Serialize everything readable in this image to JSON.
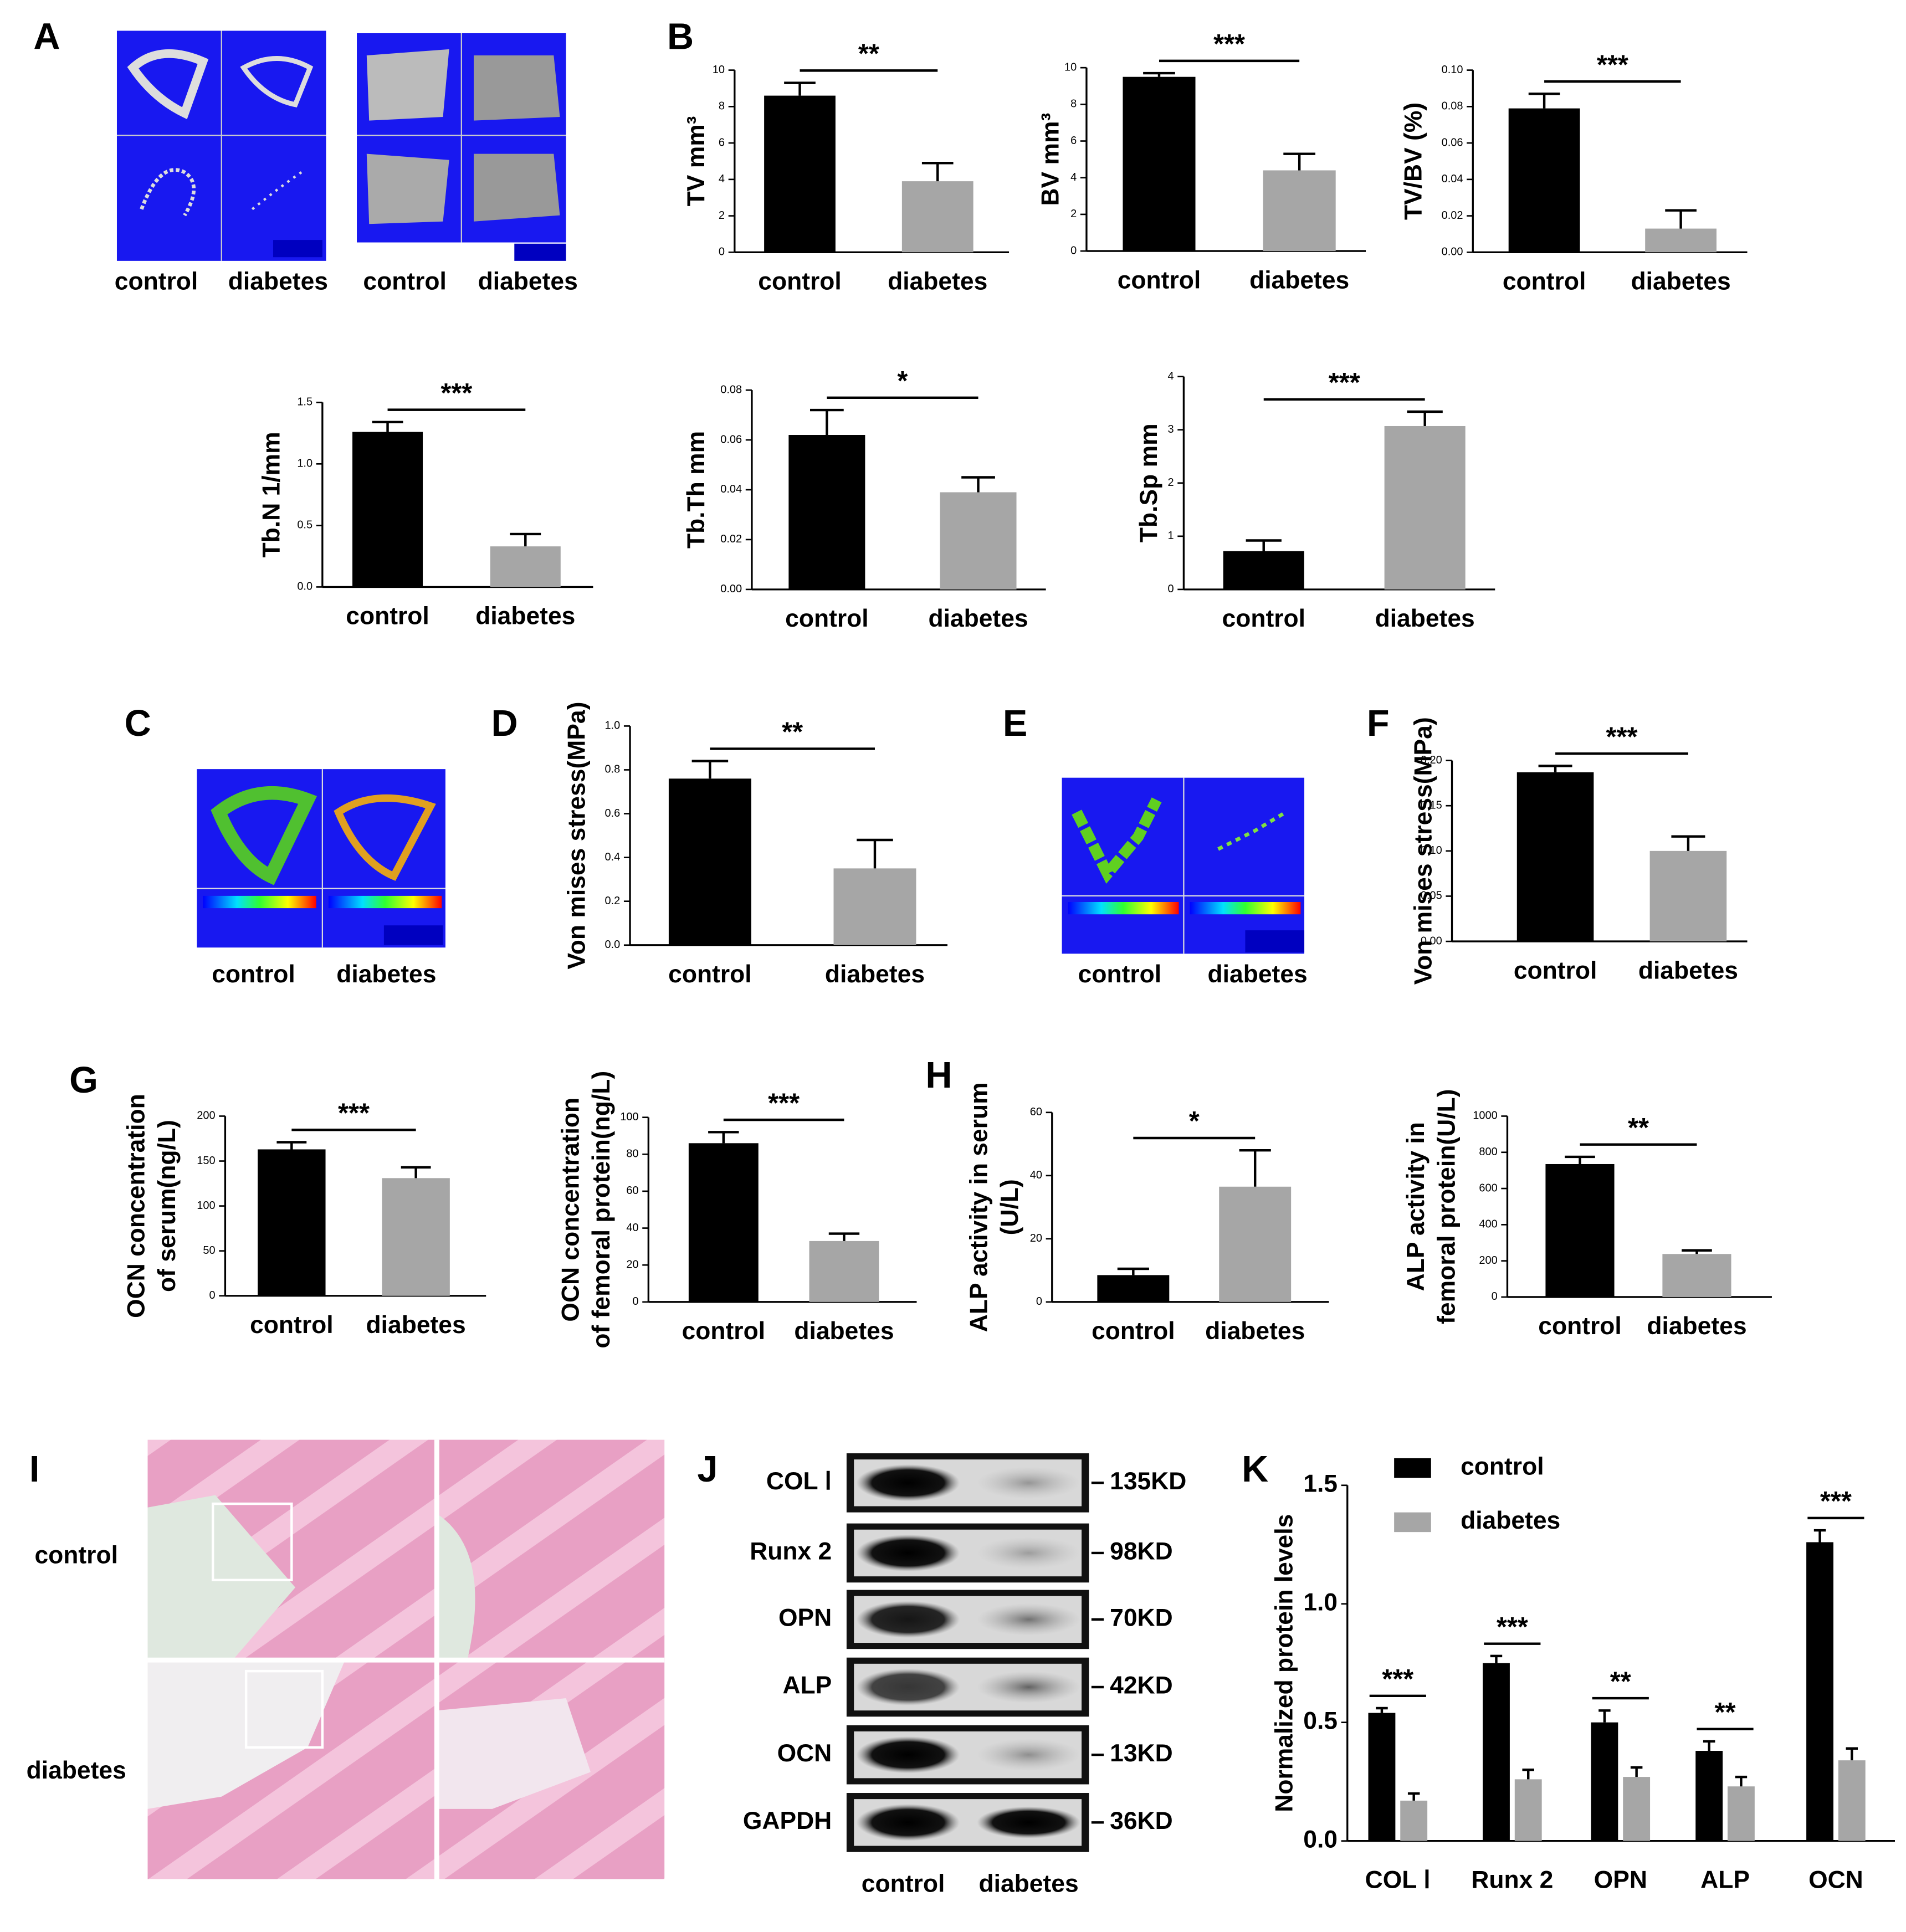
{
  "panel_letters": [
    "A",
    "B",
    "C",
    "D",
    "E",
    "F",
    "G",
    "H",
    "I",
    "J",
    "K"
  ],
  "image_panels": {
    "A": {
      "labels": [
        "control",
        "diabetes",
        "control",
        "diabetes"
      ]
    },
    "C": {
      "labels": [
        "control",
        "diabetes"
      ]
    },
    "E": {
      "labels": [
        "control",
        "diabetes"
      ]
    },
    "I": {
      "rows": [
        "control",
        "diabetes"
      ]
    },
    "J": {
      "proteins": [
        "COL Ⅰ",
        "Runx 2",
        "OPN",
        "ALP",
        "OCN",
        "GAPDH"
      ],
      "sizes": [
        "135KD",
        "98KD",
        "70KD",
        "42KD",
        "13KD",
        "36KD"
      ],
      "lanes": [
        "control",
        "diabetes"
      ]
    }
  },
  "chart_data": [
    {
      "type": "bar",
      "ylabel": [
        "TV mm³"
      ],
      "categories": [
        "control",
        "diabetes"
      ],
      "values": [
        8.6,
        3.9
      ],
      "errors": [
        0.7,
        1.0
      ],
      "colors": [
        "#000000",
        "#a6a6a6"
      ],
      "ylim": [
        0,
        10
      ],
      "yticks": [
        0,
        2,
        4,
        6,
        8,
        10
      ],
      "annotation": "**"
    },
    {
      "type": "bar",
      "ylabel": [
        "BV mm³"
      ],
      "categories": [
        "control",
        "diabetes"
      ],
      "values": [
        9.5,
        4.4
      ],
      "errors": [
        0.2,
        0.9
      ],
      "colors": [
        "#000000",
        "#a6a6a6"
      ],
      "ylim": [
        0,
        10
      ],
      "yticks": [
        0,
        2,
        4,
        6,
        8,
        10
      ],
      "annotation": "***"
    },
    {
      "type": "bar",
      "ylabel": [
        "TV/BV (%)"
      ],
      "categories": [
        "control",
        "diabetes"
      ],
      "values": [
        0.079,
        0.013
      ],
      "errors": [
        0.008,
        0.01
      ],
      "colors": [
        "#000000",
        "#a6a6a6"
      ],
      "ylim": [
        0,
        0.1
      ],
      "yticks": [
        {
          "value": 0,
          "label": "0.00"
        },
        {
          "value": 0.02,
          "label": "0.02"
        },
        {
          "value": 0.04,
          "label": "0.04"
        },
        {
          "value": 0.06,
          "label": "0.06"
        },
        {
          "value": 0.08,
          "label": "0.08"
        },
        {
          "value": 0.1,
          "label": "0.10"
        }
      ],
      "annotation": "***"
    },
    {
      "type": "bar",
      "ylabel": [
        "Tb.N  1/mm"
      ],
      "categories": [
        "control",
        "diabetes"
      ],
      "values": [
        1.26,
        0.33
      ],
      "errors": [
        0.08,
        0.1
      ],
      "colors": [
        "#000000",
        "#a6a6a6"
      ],
      "ylim": [
        0,
        1.5
      ],
      "yticks": [
        {
          "value": 0,
          "label": "0.0"
        },
        0.5,
        {
          "value": 1,
          "label": "1.0"
        },
        1.5
      ],
      "annotation": "***"
    },
    {
      "type": "bar",
      "ylabel": [
        "Tb.Th mm"
      ],
      "categories": [
        "control",
        "diabetes"
      ],
      "values": [
        0.062,
        0.039
      ],
      "errors": [
        0.01,
        0.006
      ],
      "colors": [
        "#000000",
        "#a6a6a6"
      ],
      "ylim": [
        0,
        0.08
      ],
      "yticks": [
        {
          "value": 0,
          "label": "0.00"
        },
        {
          "value": 0.02,
          "label": "0.02"
        },
        {
          "value": 0.04,
          "label": "0.04"
        },
        {
          "value": 0.06,
          "label": "0.06"
        },
        {
          "value": 0.08,
          "label": "0.08"
        }
      ],
      "annotation": "*"
    },
    {
      "type": "bar",
      "ylabel": [
        "Tb.Sp mm"
      ],
      "categories": [
        "control",
        "diabetes"
      ],
      "values": [
        0.72,
        3.07
      ],
      "errors": [
        0.2,
        0.27
      ],
      "colors": [
        "#000000",
        "#a6a6a6"
      ],
      "ylim": [
        0,
        4
      ],
      "yticks": [
        0,
        1,
        2,
        3,
        4
      ],
      "annotation": "***"
    },
    {
      "type": "bar",
      "ylabel": [
        "Von mises stress(MPa)"
      ],
      "categories": [
        "control",
        "diabetes"
      ],
      "values": [
        0.76,
        0.35
      ],
      "errors": [
        0.08,
        0.13
      ],
      "colors": [
        "#000000",
        "#a6a6a6"
      ],
      "ylim": [
        0,
        1
      ],
      "yticks": [
        {
          "value": 0,
          "label": "0.0"
        },
        0.2,
        0.4,
        0.6,
        0.8,
        {
          "value": 1,
          "label": "1.0"
        }
      ],
      "annotation": "**"
    },
    {
      "type": "bar",
      "ylabel": [
        "Von mises stress(MPa)"
      ],
      "categories": [
        "control",
        "diabetes"
      ],
      "values": [
        0.187,
        0.1
      ],
      "errors": [
        0.007,
        0.016
      ],
      "colors": [
        "#000000",
        "#a6a6a6"
      ],
      "ylim": [
        0,
        0.2
      ],
      "yticks": [
        {
          "value": 0,
          "label": "0.00"
        },
        0.05,
        {
          "value": 0.1,
          "label": "0.10"
        },
        0.15,
        {
          "value": 0.2,
          "label": "0.20"
        }
      ],
      "annotation": "***"
    },
    {
      "type": "bar",
      "ylabel": [
        "OCN concentration",
        "of serum(ng/L)"
      ],
      "categories": [
        "control",
        "diabetes"
      ],
      "values": [
        163,
        131
      ],
      "errors": [
        8,
        12
      ],
      "colors": [
        "#000000",
        "#a6a6a6"
      ],
      "ylim": [
        0,
        200
      ],
      "yticks": [
        0,
        50,
        100,
        150,
        200
      ],
      "annotation": "***"
    },
    {
      "type": "bar",
      "ylabel": [
        "OCN concentration",
        "of femoral protein(ng/L)"
      ],
      "categories": [
        "control",
        "diabetes"
      ],
      "values": [
        86,
        33
      ],
      "errors": [
        6,
        4
      ],
      "colors": [
        "#000000",
        "#a6a6a6"
      ],
      "ylim": [
        0,
        100
      ],
      "yticks": [
        0,
        20,
        40,
        60,
        80,
        100
      ],
      "annotation": "***"
    },
    {
      "type": "bar",
      "ylabel": [
        "ALP activity in serum",
        "(U/L)"
      ],
      "categories": [
        "control",
        "diabetes"
      ],
      "values": [
        8.5,
        36.5
      ],
      "errors": [
        2,
        11.5
      ],
      "colors": [
        "#000000",
        "#a6a6a6"
      ],
      "ylim": [
        0,
        60
      ],
      "yticks": [
        0,
        20,
        40,
        60
      ],
      "annotation": "*"
    },
    {
      "type": "bar",
      "ylabel": [
        "ALP  activity in",
        "femoral protein(U/L)"
      ],
      "categories": [
        "control",
        "diabetes"
      ],
      "values": [
        735,
        238
      ],
      "errors": [
        40,
        20
      ],
      "colors": [
        "#000000",
        "#a6a6a6"
      ],
      "ylim": [
        0,
        1000
      ],
      "yticks": [
        0,
        200,
        400,
        600,
        800,
        1000
      ],
      "annotation": "**"
    },
    {
      "type": "grouped-bar",
      "ylabel": [
        "Normalized protein levels"
      ],
      "categories": [
        "COL Ⅰ",
        "Runx 2",
        "OPN",
        "ALP",
        "OCN"
      ],
      "series": [
        {
          "name": "control",
          "color": "#000000",
          "values": [
            0.54,
            0.75,
            0.5,
            0.38,
            1.26
          ],
          "errors": [
            0.02,
            0.03,
            0.05,
            0.04,
            0.05
          ]
        },
        {
          "name": "diabetes",
          "color": "#a6a6a6",
          "values": [
            0.17,
            0.26,
            0.27,
            0.23,
            0.34
          ],
          "errors": [
            0.03,
            0.04,
            0.04,
            0.04,
            0.05
          ]
        }
      ],
      "ylim": [
        0,
        1.5
      ],
      "yticks": [
        {
          "value": 0,
          "label": "0.0"
        },
        0.5,
        {
          "value": 1,
          "label": "1.0"
        },
        1.5
      ],
      "annotations": [
        "***",
        "***",
        "**",
        "**",
        "***"
      ],
      "legend": "top-left"
    }
  ]
}
